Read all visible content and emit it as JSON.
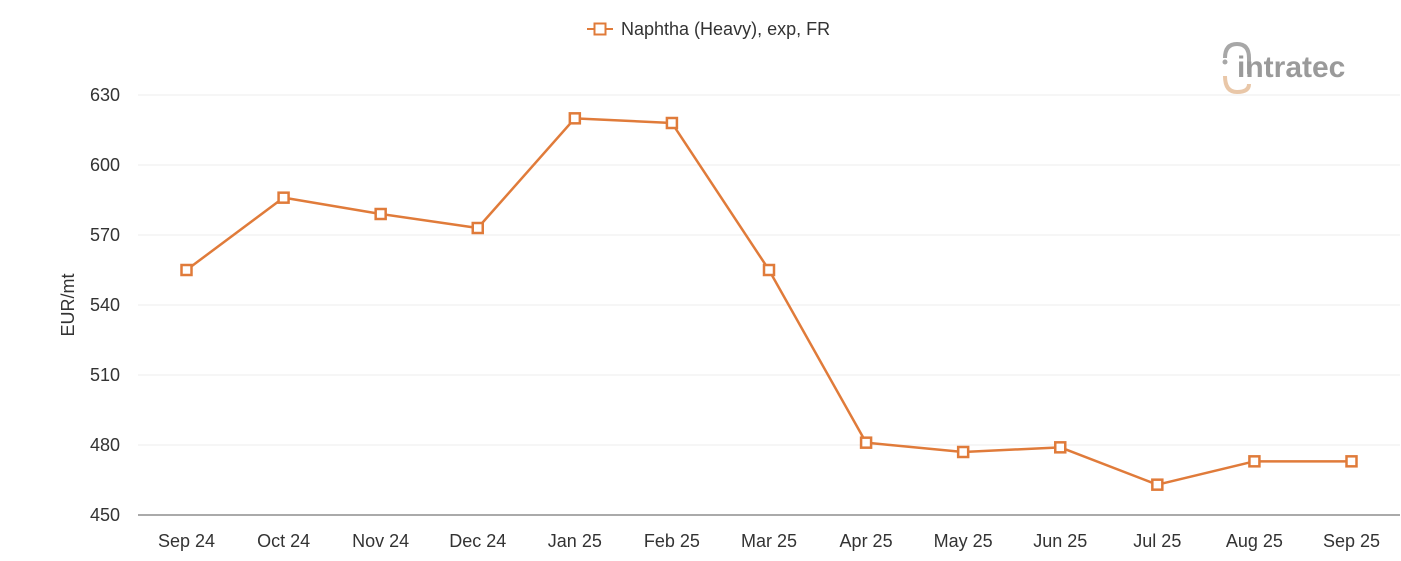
{
  "chart_data": {
    "type": "line",
    "legend_position": "top-center",
    "grid": true,
    "ylabel": "EUR/mt",
    "ylim": [
      450,
      630
    ],
    "yticks": [
      "450",
      "480",
      "510",
      "540",
      "570",
      "600",
      "630"
    ],
    "categories": [
      "Sep 24",
      "Oct 24",
      "Nov 24",
      "Dec 24",
      "Jan 25",
      "Feb 25",
      "Mar 25",
      "Apr 25",
      "May 25",
      "Jun 25",
      "Jul 25",
      "Aug 25",
      "Sep 25"
    ],
    "series": [
      {
        "name": "Naphtha (Heavy), exp, FR",
        "color": "#e07b3a",
        "marker": "square",
        "values": [
          555,
          586,
          579,
          573,
          620,
          618,
          555,
          481,
          477,
          479,
          463,
          473,
          473
        ]
      }
    ]
  },
  "logo": {
    "text": "intratec",
    "icon": "intratec-logo-icon"
  }
}
